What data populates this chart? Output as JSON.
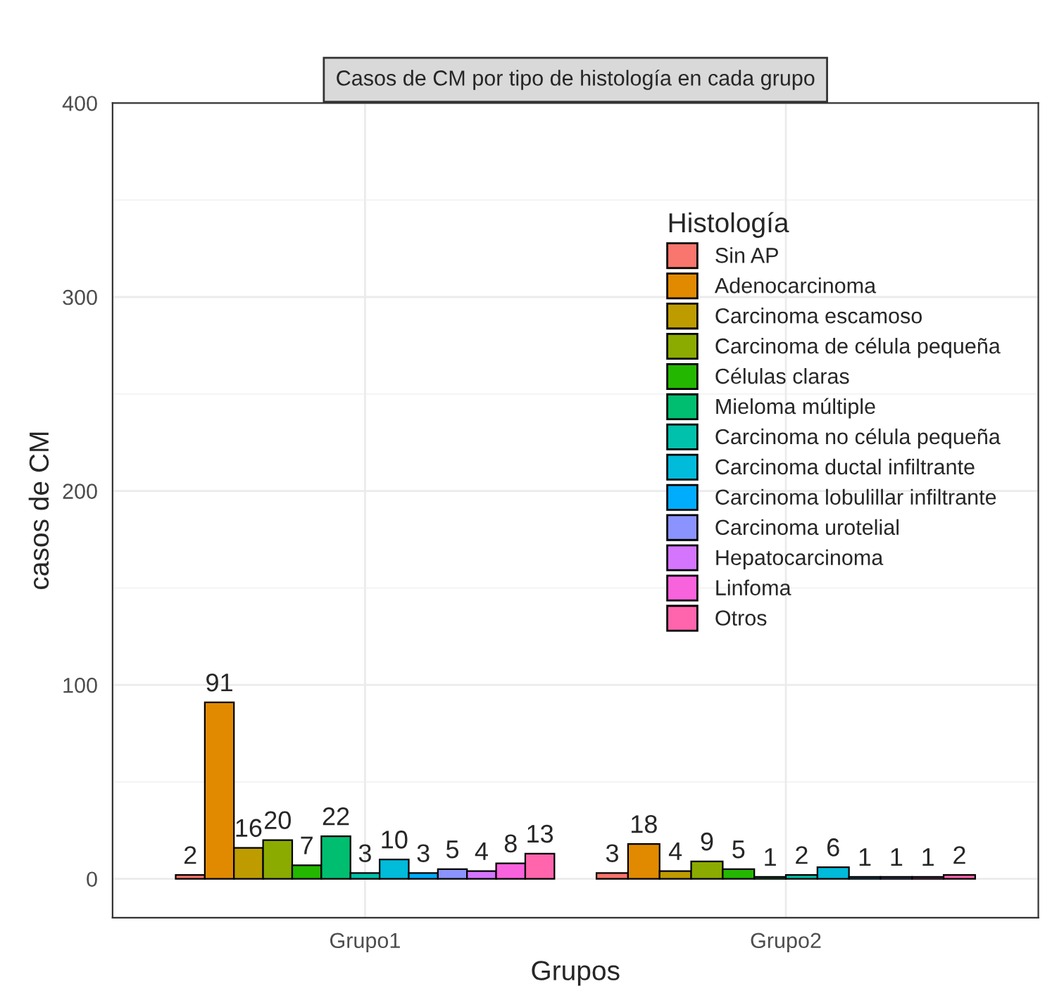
{
  "chart_data": {
    "type": "bar",
    "title": "Casos de CM por tipo de histología en cada grupo",
    "xlabel": "Grupos",
    "ylabel": "casos de CM",
    "legend_title": "Histología",
    "categories": [
      "Grupo1",
      "Grupo2"
    ],
    "series": [
      {
        "name": "Sin AP",
        "color": "#f8766d",
        "values": [
          2,
          3
        ]
      },
      {
        "name": "Adenocarcinoma",
        "color": "#e18a00",
        "values": [
          91,
          18
        ]
      },
      {
        "name": "Carcinoma escamoso",
        "color": "#be9c00",
        "values": [
          16,
          4
        ]
      },
      {
        "name": "Carcinoma de célula pequeña",
        "color": "#8cab00",
        "values": [
          20,
          9
        ]
      },
      {
        "name": "Células claras",
        "color": "#24b700",
        "values": [
          7,
          5
        ]
      },
      {
        "name": "Mieloma múltiple",
        "color": "#00be70",
        "values": [
          22,
          1
        ]
      },
      {
        "name": "Carcinoma no célula pequeña",
        "color": "#00c1ab",
        "values": [
          3,
          2
        ]
      },
      {
        "name": "Carcinoma ductal infiltrante",
        "color": "#00bbda",
        "values": [
          10,
          6
        ]
      },
      {
        "name": "Carcinoma lobulillar infiltrante",
        "color": "#00acfc",
        "values": [
          3,
          1
        ]
      },
      {
        "name": "Carcinoma urotelial",
        "color": "#8b93ff",
        "values": [
          5,
          1
        ]
      },
      {
        "name": "Hepatocarcinoma",
        "color": "#d575fe",
        "values": [
          4,
          null
        ]
      },
      {
        "name": "Linfoma",
        "color": "#f962dd",
        "values": [
          8,
          1
        ]
      },
      {
        "name": "Otros",
        "color": "#ff65ac",
        "values": [
          13,
          2
        ]
      }
    ],
    "data_labels": true,
    "ylim": [
      -20,
      400
    ],
    "yticks": [
      0,
      100,
      200,
      300,
      400
    ],
    "grid": true,
    "legend": "top right"
  }
}
